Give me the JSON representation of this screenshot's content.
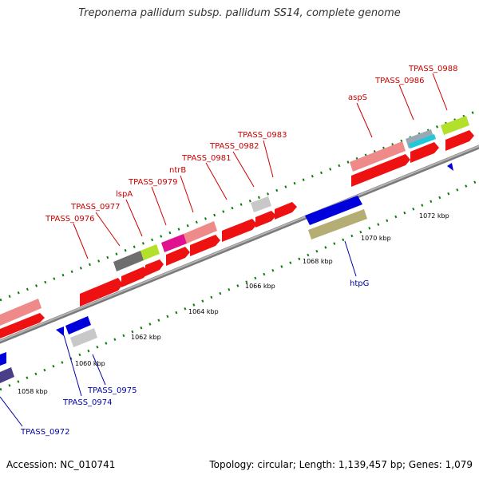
{
  "title": "Treponema pallidum subsp. pallidum SS14, complete genome",
  "footer": {
    "accession": "Accession: NC_010741",
    "summary": "Topology: circular; Length: 1,139,457 bp; Genes: 1,079"
  },
  "colors": {
    "forward_gene_label": "#cc0000",
    "reverse_gene_label": "#0000aa",
    "tick": "#0a7d0a",
    "backbone": "#8c8c8c",
    "cds": "#ee1111"
  },
  "axis": {
    "unit": "kbp",
    "forward_ticks": [
      {
        "kbp": 1072,
        "label": "1072 kbp"
      }
    ],
    "reverse_ticks": [
      {
        "kbp": 1058,
        "label": "1058 kbp"
      },
      {
        "kbp": 1060,
        "label": "1060 kbp"
      },
      {
        "kbp": 1062,
        "label": "1062 kbp"
      },
      {
        "kbp": 1064,
        "label": "1064 kbp"
      },
      {
        "kbp": 1066,
        "label": "1066 kbp"
      },
      {
        "kbp": 1068,
        "label": "1068 kbp"
      },
      {
        "kbp": 1070,
        "label": "1070 kbp"
      }
    ]
  },
  "forward_gene_labels": [
    "TPASS_0976",
    "TPASS_0977",
    "lspA",
    "TPASS_0979",
    "ntrB",
    "TPASS_0981",
    "TPASS_0982",
    "TPASS_0983",
    "aspS",
    "TPASS_0986",
    "TPASS_0988"
  ],
  "reverse_gene_labels": [
    "TPASS_0972",
    "TPASS_0974",
    "TPASS_0975",
    "htpG"
  ]
}
